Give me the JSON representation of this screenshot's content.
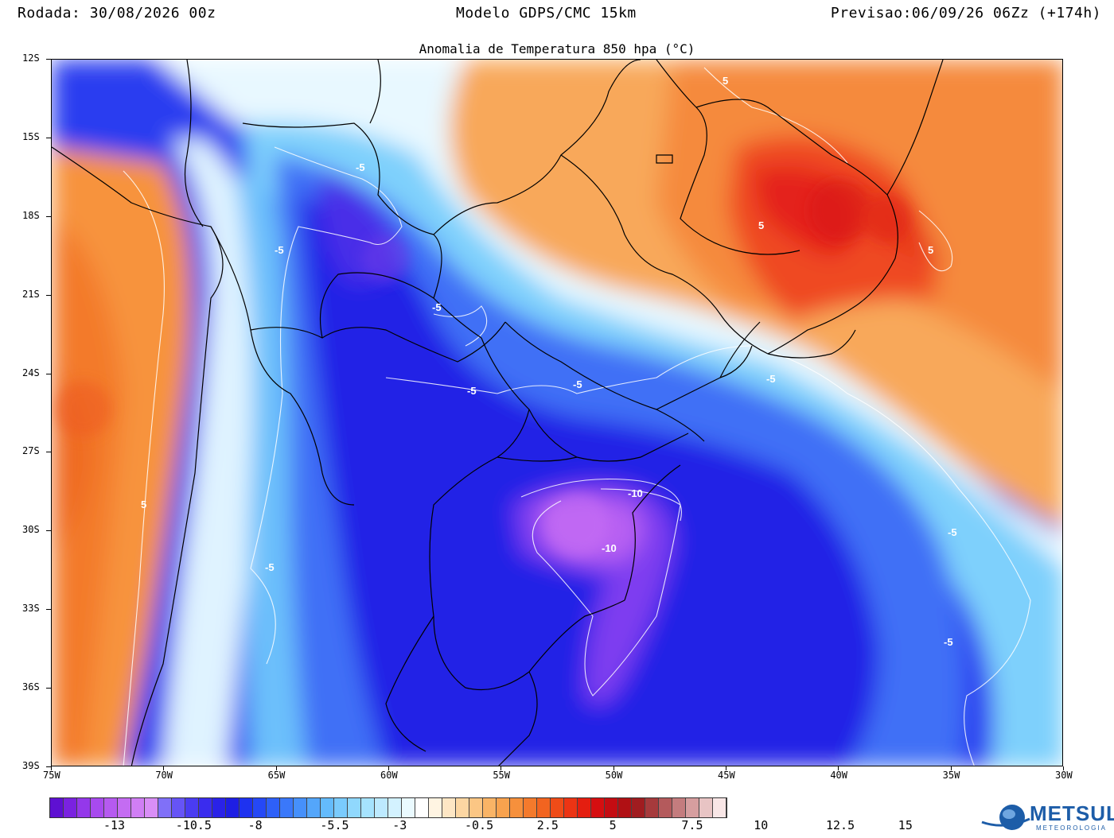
{
  "header": {
    "rodada": "Rodada: 30/08/2026 00z",
    "modelo": "Modelo GDPS/CMC 15km",
    "previsao": "Previsao:06/09/26 06Zz (+174h)"
  },
  "subtitle": "Anomalia de Temperatura 850 hpa (°C)",
  "map": {
    "lat_range": [
      -39,
      -12
    ],
    "lon_range": [
      -75,
      -30
    ],
    "lat_labels": [
      "12S",
      "15S",
      "18S",
      "21S",
      "24S",
      "27S",
      "30S",
      "33S",
      "36S",
      "39S"
    ],
    "lon_labels": [
      "75W",
      "70W",
      "65W",
      "60W",
      "55W",
      "50W",
      "45W",
      "40W",
      "35W",
      "30W"
    ],
    "contour_labels": [
      "5",
      "-5",
      "-5",
      "-5",
      "-5",
      "-5",
      "-5",
      "-5",
      "5",
      "5",
      "-10",
      "-10",
      "-5",
      "-5",
      "5",
      "-5"
    ]
  },
  "colorbar": {
    "labels": [
      "-13",
      "-10.5",
      "-8",
      "-5.5",
      "-3",
      "-0.5",
      "2.5",
      "5",
      "7.5",
      "10",
      "12.5",
      "15"
    ],
    "colors": [
      "#5e10d2",
      "#7a22e0",
      "#9438ea",
      "#a84aee",
      "#b65af0",
      "#c46cf2",
      "#d07ef4",
      "#d98ef6",
      "#8070f8",
      "#6654f6",
      "#4a3cf2",
      "#3a2cee",
      "#2a22e8",
      "#1e1ee4",
      "#1e32f0",
      "#2548f6",
      "#2e60f8",
      "#3a78fa",
      "#4690fb",
      "#54a6fb",
      "#64bbfc",
      "#7acbfd",
      "#90d8fd",
      "#a6e3fe",
      "#bdeaff",
      "#d3f2ff",
      "#eafaff",
      "#ffffff",
      "#fff4e2",
      "#fde6c4",
      "#fcd6a2",
      "#fbc684",
      "#f9b466",
      "#f8a24e",
      "#f6903c",
      "#f47a2c",
      "#f26420",
      "#ef4c18",
      "#ec3414",
      "#e41e10",
      "#d60e10",
      "#c40c12",
      "#b01014",
      "#a01c20",
      "#a63a3c",
      "#b45a5c",
      "#c47c7e",
      "#d69e9f",
      "#e8c4c4",
      "#f8e6e6"
    ],
    "accent_cold": "#2e2ee6",
    "accent_warm": "#f47a2c"
  },
  "logo": {
    "name": "METSUL",
    "sub": "METEOROLOGIA",
    "icon": "globe-swoosh-icon"
  }
}
